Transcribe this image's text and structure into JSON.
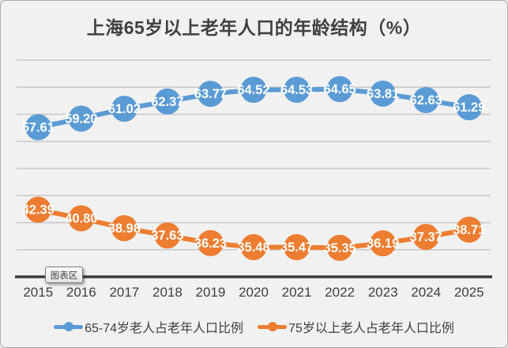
{
  "chart": {
    "tooltip_label": "图表区"
  },
  "colors": {
    "background": "#F1F1F1",
    "gridline": "#C8C8C8",
    "axis_line": "#3A3A3A",
    "text": "#404040",
    "series_blue": "#5B9BD5",
    "series_orange": "#ED7D31",
    "data_label_text": "#FFFFFF"
  },
  "chart_data": {
    "type": "line",
    "title": "上海65岁以上老年人口的年龄结构（%）",
    "categories": [
      "2015",
      "2016",
      "2017",
      "2018",
      "2019",
      "2020",
      "2021",
      "2022",
      "2023",
      "2024",
      "2025"
    ],
    "series": [
      {
        "name": "65-74岁老人占老年人口比例",
        "color": "#5B9BD5",
        "values": [
          57.61,
          59.2,
          61.02,
          62.37,
          63.77,
          64.52,
          64.53,
          64.65,
          63.81,
          62.63,
          61.29
        ]
      },
      {
        "name": "75岁以上老人占老年人口比例",
        "color": "#ED7D31",
        "values": [
          42.39,
          40.8,
          38.98,
          37.63,
          36.23,
          35.48,
          35.47,
          35.35,
          36.19,
          37.37,
          38.71
        ]
      }
    ],
    "xlabel": "",
    "ylabel": "",
    "ylim": [
      30,
      70
    ],
    "ytick_step": 5,
    "grid": true,
    "y_axis_labels_visible": false,
    "data_label_format": "0.00",
    "data_label_position": "center",
    "legend_position": "bottom"
  }
}
